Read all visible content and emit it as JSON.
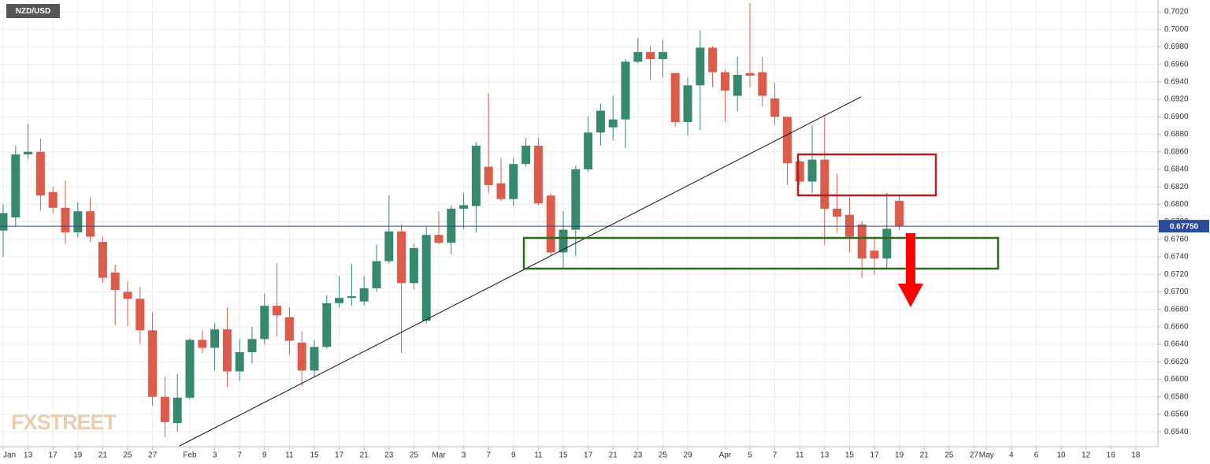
{
  "chart_data": {
    "type": "candlestick",
    "title": "NZD/USD",
    "watermark": "FXSTREET",
    "categories": [
      "Jan",
      null,
      "13",
      null,
      "17",
      null,
      "19",
      null,
      "21",
      null,
      "25",
      null,
      "27",
      null,
      null,
      "Feb",
      null,
      "3",
      null,
      "7",
      null,
      "9",
      null,
      "11",
      null,
      "15",
      null,
      "17",
      null,
      "21",
      null,
      "23",
      null,
      "25",
      null,
      "Mar",
      null,
      "3",
      null,
      "7",
      null,
      "9",
      null,
      "11",
      null,
      "15",
      null,
      "17",
      null,
      "21",
      null,
      "23",
      null,
      "25",
      null,
      "29",
      null,
      null,
      "Apr",
      null,
      "5",
      null,
      "7",
      null,
      "11",
      null,
      "13",
      null,
      "15",
      null,
      "17",
      null,
      "19",
      null,
      "21",
      null,
      "25",
      null,
      "27",
      "May",
      null,
      "4",
      null,
      "6",
      null,
      "10",
      null,
      "12",
      null,
      "16",
      null,
      "18",
      null
    ],
    "open": [
      0.677,
      0.6785,
      0.6857,
      0.686,
      0.6814,
      0.6796,
      0.6768,
      0.6792,
      0.6757,
      0.6722,
      0.67,
      0.6692,
      0.6656,
      0.658,
      0.655,
      0.6579,
      0.6645,
      0.6636,
      0.6657,
      0.6609,
      0.6631,
      0.6646,
      0.6684,
      0.6671,
      0.6642,
      0.661,
      0.6637,
      0.6687,
      0.6693,
      0.6689,
      0.6704,
      0.6735,
      0.6769,
      0.671,
      0.6667,
      0.6765,
      0.6756,
      0.6795,
      0.6798,
      0.6843,
      0.6824,
      0.6806,
      0.6846,
      0.6867,
      0.681,
      0.6745,
      0.6771,
      0.684,
      0.6882,
      0.6888,
      0.6897,
      0.6963,
      0.6974,
      0.6966,
      0.695,
      0.6894,
      0.6936,
      0.6979,
      0.6951,
      0.6924,
      0.695,
      0.6951,
      0.6921,
      0.69,
      0.6849,
      0.6826,
      0.6851,
      0.6795,
      0.6788,
      0.6777,
      0.6747,
      0.6738,
      0.6804,
      null,
      null,
      null,
      null,
      null,
      null,
      null,
      null,
      null,
      null,
      null,
      null,
      null,
      null,
      null,
      null,
      null,
      null,
      null,
      null
    ],
    "high": [
      0.68,
      0.6867,
      0.6892,
      0.6875,
      0.682,
      0.6827,
      0.6802,
      0.6808,
      0.6763,
      0.6731,
      0.6712,
      0.6705,
      0.6677,
      0.6603,
      0.6606,
      0.6647,
      0.6656,
      0.6664,
      0.6682,
      0.6646,
      0.666,
      0.6698,
      0.6733,
      0.6682,
      0.6655,
      0.6645,
      0.6696,
      0.6718,
      0.6732,
      0.6718,
      0.6754,
      0.681,
      0.6777,
      0.6755,
      0.6774,
      0.6792,
      0.6799,
      0.6813,
      0.6871,
      0.6927,
      0.6853,
      0.6853,
      0.6876,
      0.6876,
      0.6813,
      0.6792,
      0.6844,
      0.69,
      0.6915,
      0.6924,
      0.6966,
      0.699,
      0.6981,
      0.6988,
      0.695,
      0.6945,
      0.6999,
      0.6981,
      0.6954,
      0.6969,
      0.703,
      0.6969,
      0.6939,
      0.69,
      0.685,
      0.689,
      0.69,
      0.6835,
      0.6808,
      0.6781,
      0.6763,
      0.6813,
      0.681,
      null,
      null,
      null,
      null,
      null,
      null,
      null,
      null,
      null,
      null,
      null,
      null,
      null,
      null,
      null,
      null,
      null,
      null,
      null,
      null
    ],
    "low": [
      0.674,
      0.6775,
      0.6852,
      0.6793,
      0.679,
      0.6755,
      0.6762,
      0.6757,
      0.671,
      0.6662,
      0.6661,
      0.664,
      0.657,
      0.6534,
      0.654,
      0.6577,
      0.663,
      0.661,
      0.6591,
      0.6598,
      0.6618,
      0.664,
      0.6649,
      0.6628,
      0.6592,
      0.6603,
      0.6635,
      0.6682,
      0.6684,
      0.6684,
      0.67,
      0.6732,
      0.663,
      0.6703,
      0.6664,
      0.6754,
      0.6743,
      0.6772,
      0.6768,
      0.6813,
      0.6804,
      0.6798,
      0.6843,
      0.6799,
      0.6741,
      0.6727,
      0.6741,
      0.6837,
      0.6867,
      0.6873,
      0.6864,
      0.6961,
      0.6942,
      0.6945,
      0.6889,
      0.6879,
      0.6885,
      0.6934,
      0.6894,
      0.6906,
      0.6934,
      0.6912,
      0.6891,
      0.6822,
      0.6822,
      0.6813,
      0.6754,
      0.6768,
      0.6745,
      0.6716,
      0.672,
      0.6727,
      0.6771,
      null,
      null,
      null,
      null,
      null,
      null,
      null,
      null,
      null,
      null,
      null,
      null,
      null,
      null,
      null,
      null,
      null,
      null,
      null,
      null
    ],
    "close": [
      0.679,
      0.6857,
      0.686,
      0.681,
      0.6796,
      0.6768,
      0.6792,
      0.6763,
      0.6716,
      0.6702,
      0.6692,
      0.6656,
      0.658,
      0.6551,
      0.6579,
      0.6645,
      0.6636,
      0.6657,
      0.6609,
      0.6631,
      0.6646,
      0.6684,
      0.6673,
      0.6644,
      0.661,
      0.6637,
      0.6687,
      0.6693,
      0.6695,
      0.6704,
      0.6735,
      0.6769,
      0.671,
      0.675,
      0.6765,
      0.6756,
      0.6795,
      0.6799,
      0.6867,
      0.6822,
      0.6806,
      0.6846,
      0.6867,
      0.6801,
      0.6745,
      0.6771,
      0.684,
      0.6882,
      0.6907,
      0.6897,
      0.6963,
      0.6974,
      0.6966,
      0.6974,
      0.6894,
      0.6936,
      0.6979,
      0.6951,
      0.693,
      0.6948,
      0.6947,
      0.6924,
      0.69,
      0.6847,
      0.6826,
      0.6851,
      0.6795,
      0.6786,
      0.6763,
      0.6738,
      0.6738,
      0.6772,
      0.6775,
      null,
      null,
      null,
      null,
      null,
      null,
      null,
      null,
      null,
      null,
      null,
      null,
      null,
      null,
      null,
      null,
      null,
      null,
      null,
      null
    ],
    "up_color": "#35896f",
    "down_color": "#dc5b4b",
    "ylim": [
      0.6523,
      0.70335
    ],
    "yticks": [
      {
        "value": 0.654,
        "label": "0.6540"
      },
      {
        "value": 0.656,
        "label": "0.6560"
      },
      {
        "value": 0.658,
        "label": "0.6580"
      },
      {
        "value": 0.66,
        "label": "0.6600"
      },
      {
        "value": 0.662,
        "label": "0.6620"
      },
      {
        "value": 0.664,
        "label": "0.6640"
      },
      {
        "value": 0.666,
        "label": "0.6660"
      },
      {
        "value": 0.668,
        "label": "0.6680"
      },
      {
        "value": 0.67,
        "label": "0.6700"
      },
      {
        "value": 0.672,
        "label": "0.6720"
      },
      {
        "value": 0.674,
        "label": "0.6740"
      },
      {
        "value": 0.676,
        "label": "0.6760"
      },
      {
        "value": 0.678,
        "label": "0.6780"
      },
      {
        "value": 0.68,
        "label": "0.6800"
      },
      {
        "value": 0.682,
        "label": "0.6820"
      },
      {
        "value": 0.684,
        "label": "0.6840"
      },
      {
        "value": 0.686,
        "label": "0.6860"
      },
      {
        "value": 0.688,
        "label": "0.6880"
      },
      {
        "value": 0.69,
        "label": "0.6900"
      },
      {
        "value": 0.692,
        "label": "0.6920"
      },
      {
        "value": 0.694,
        "label": "0.6940"
      },
      {
        "value": 0.696,
        "label": "0.6960"
      },
      {
        "value": 0.698,
        "label": "0.6980"
      },
      {
        "value": 0.7,
        "label": "0.7000"
      },
      {
        "value": 0.702,
        "label": "0.7020"
      }
    ],
    "grid": true,
    "price_line": {
      "value": 0.6775,
      "label": "0.67750",
      "color": "#2b4a9a"
    }
  }
}
